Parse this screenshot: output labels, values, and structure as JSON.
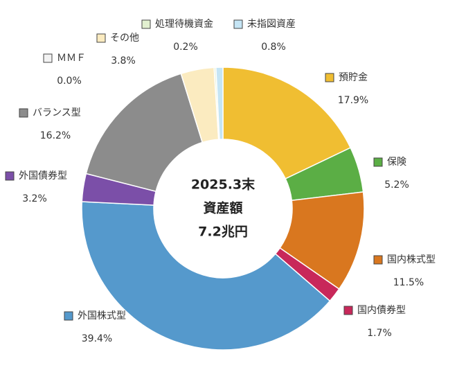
{
  "chart_data": {
    "type": "donut",
    "center_label": [
      "2025.3末",
      "資産額",
      "7.2兆円"
    ],
    "categories": [
      "預貯金",
      "保険",
      "国内株式型",
      "国内債券型",
      "外国株式型",
      "外国債券型",
      "バランス型",
      "ＭＭＦ",
      "その他",
      "処理待機資金",
      "未指図資産"
    ],
    "values": [
      17.9,
      5.2,
      11.5,
      1.7,
      39.4,
      3.2,
      16.2,
      0.0,
      3.8,
      0.2,
      0.8
    ],
    "value_labels": [
      "17.9%",
      "5.2%",
      "11.5%",
      "1.7%",
      "39.4%",
      "3.2%",
      "16.2%",
      "0.0%",
      "3.8%",
      "0.2%",
      "0.8%"
    ],
    "colors": [
      "#f0be32",
      "#5bae45",
      "#d9771f",
      "#c8285a",
      "#5599cc",
      "#7b4fa8",
      "#8c8c8c",
      "#f2f2f2",
      "#fbebc0",
      "#e2f0d0",
      "#c5e5f5"
    ]
  }
}
